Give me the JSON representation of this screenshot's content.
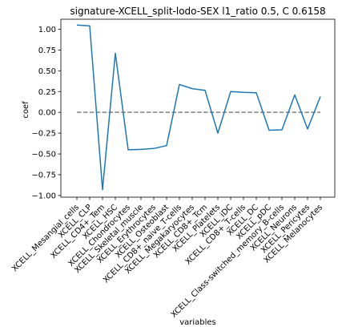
{
  "chart_data": {
    "type": "line",
    "title": "signature-XCELL_split-lodo-SEX l1_ratio 0.5, C 0.6158",
    "xlabel": "variables",
    "ylabel": "coef",
    "ylim": [
      -1.02,
      1.12
    ],
    "yticks": [
      1.0,
      0.75,
      0.5,
      0.25,
      0.0,
      -0.25,
      -0.5,
      -0.75,
      -1.0
    ],
    "ytick_labels": [
      "1.00",
      "0.75",
      "0.50",
      "0.25",
      "0.00",
      "−0.25",
      "−0.50",
      "−0.75",
      "−1.00"
    ],
    "categories": [
      "XCELL_Mesangial_cells",
      "XCELL_CLP",
      "XCELL_CD4+_Tem",
      "XCELL_HSC",
      "XCELL_Chondrocytes",
      "XCELL_Skeletal_muscle",
      "XCELL_Erythrocytes",
      "XCELL_Osteoblast",
      "XCELL_CD8+_naive_T-cells",
      "XCELL_Megakaryocytes",
      "XCELL_CD8+_Tcm",
      "XCELL_Platelets",
      "XCELL_iDC",
      "XCELL_CD8+_T-cells",
      "XCELL_DC",
      "XCELL_pDC",
      "XCELL_Class-switched_memory_B-cells",
      "XCELL_Neurons",
      "XCELL_Pericytes",
      "XCELL_Melanocytes"
    ],
    "series": [
      {
        "values": [
          1.05,
          1.04,
          -0.93,
          0.71,
          -0.45,
          -0.445,
          -0.435,
          -0.4,
          0.335,
          0.285,
          0.265,
          -0.25,
          0.25,
          0.24,
          0.235,
          -0.215,
          -0.21,
          0.21,
          -0.2,
          0.19
        ],
        "color": "#1f77b4"
      }
    ],
    "reference_line": {
      "y": 0.0,
      "style": "dashed",
      "color": "#808080"
    },
    "grid": false,
    "legend": "none"
  }
}
